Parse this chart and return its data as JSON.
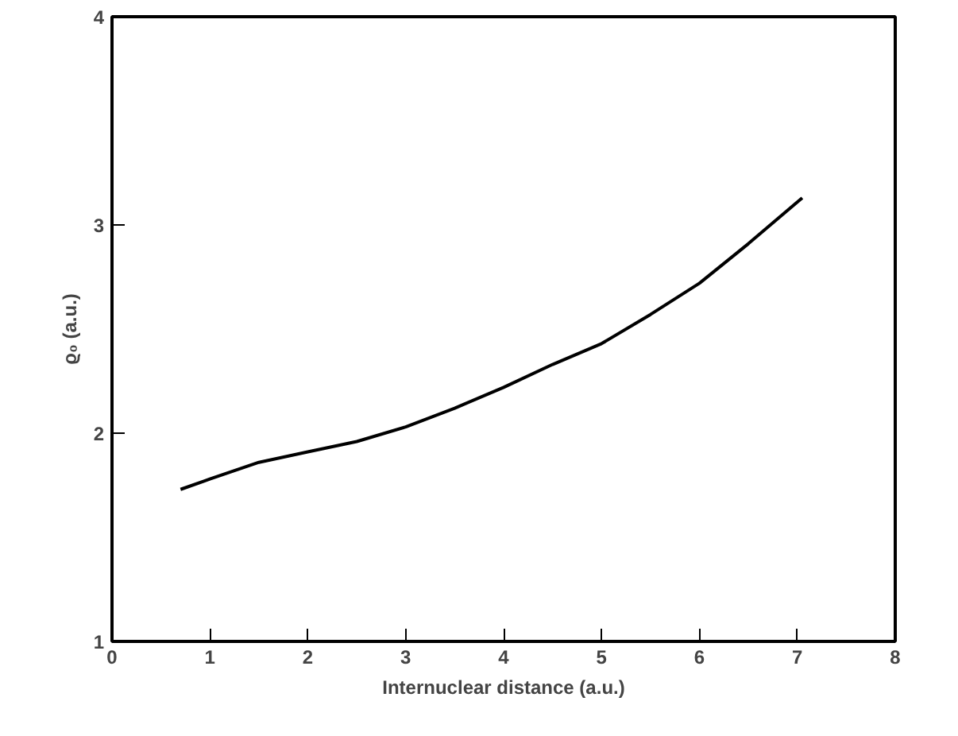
{
  "chart_data": {
    "type": "line",
    "xlabel": "Internuclear distance (a.u.)",
    "ylabel": "ϱ₀ (a.u.)",
    "x": [
      0.7,
      1.0,
      1.5,
      2.0,
      2.5,
      3.0,
      3.5,
      4.0,
      4.5,
      5.0,
      5.5,
      6.0,
      6.5,
      7.05
    ],
    "series": [
      {
        "color": "#000000",
        "values": [
          1.73,
          1.78,
          1.86,
          1.91,
          1.96,
          2.03,
          2.12,
          2.22,
          2.33,
          2.43,
          2.57,
          2.72,
          2.91,
          3.13
        ]
      }
    ],
    "xlim": [
      0,
      8
    ],
    "ylim": [
      1,
      4
    ],
    "xticks": [
      0,
      1,
      2,
      3,
      4,
      5,
      6,
      7,
      8
    ],
    "yticks": [
      1,
      2,
      3,
      4
    ],
    "grid": false,
    "marker": "none",
    "line_style": "solid"
  }
}
